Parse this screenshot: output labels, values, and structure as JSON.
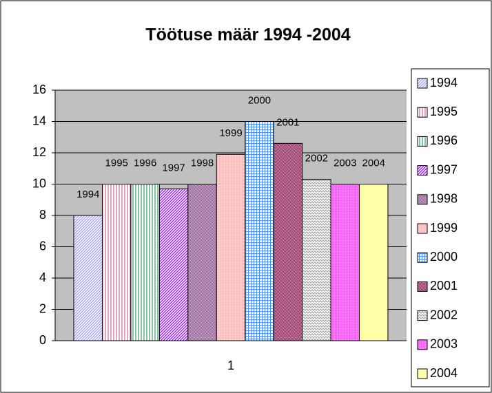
{
  "chart_data": {
    "type": "bar",
    "title": "Töötuse määr 1994 -2004",
    "categories": [
      "1"
    ],
    "series": [
      {
        "name": "1994",
        "color": "#9999ff",
        "values": [
          8
        ]
      },
      {
        "name": "1995",
        "color": "#cc6699",
        "values": [
          10
        ]
      },
      {
        "name": "1996",
        "color": "#339966",
        "values": [
          10
        ]
      },
      {
        "name": "1997",
        "color": "#9900ff",
        "values": [
          9.7
        ]
      },
      {
        "name": "1998",
        "color": "#996699",
        "values": [
          10
        ]
      },
      {
        "name": "1999",
        "color": "#ff9999",
        "values": [
          11.9
        ]
      },
      {
        "name": "2000",
        "color": "#3399ff",
        "values": [
          14
        ]
      },
      {
        "name": "2001",
        "color": "#993366",
        "values": [
          12.6
        ]
      },
      {
        "name": "2002",
        "color": "#999999",
        "values": [
          10.3
        ]
      },
      {
        "name": "2003",
        "color": "#ff00ff",
        "values": [
          10
        ]
      },
      {
        "name": "2004",
        "color": "#ffff66",
        "values": [
          10
        ]
      }
    ],
    "ylim": [
      0,
      16
    ],
    "yticks": [
      0,
      2,
      4,
      6,
      8,
      10,
      12,
      14,
      16
    ],
    "grid": true,
    "legend": "right"
  }
}
